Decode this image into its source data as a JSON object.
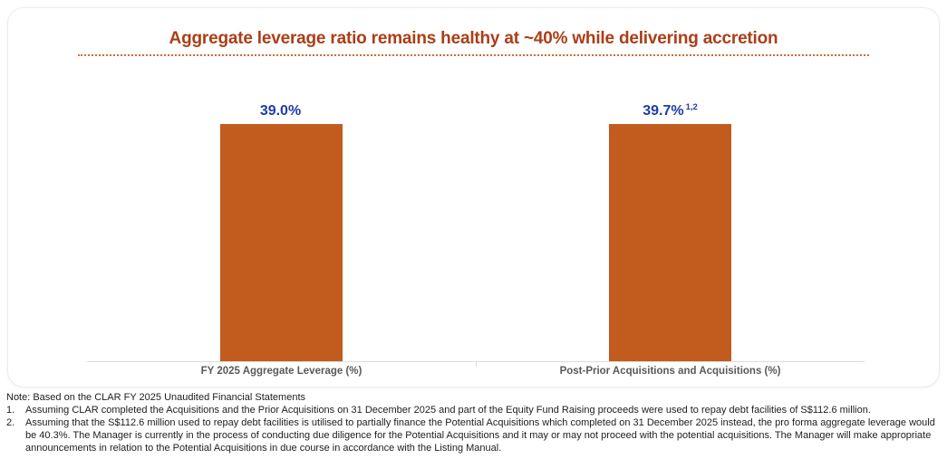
{
  "title": "Aggregate leverage ratio remains healthy at ~40% while delivering accretion",
  "chart_data": {
    "type": "bar",
    "title": "Aggregate leverage ratio remains healthy at ~40% while delivering accretion",
    "categories": [
      "FY 2025 Aggregate Leverage (%)",
      "Post-Prior Acquisitions and Acquisitions (%)"
    ],
    "values": [
      39.0,
      39.7
    ],
    "value_labels": [
      "39.0%",
      "39.7%"
    ],
    "value_label_superscripts": [
      "",
      "1,2"
    ],
    "xlabel": "",
    "ylabel": "",
    "ylim": [
      0,
      40
    ],
    "grid": false,
    "legend": false,
    "bar_color": "#c25b1e",
    "value_label_color": "#1e3ca8",
    "title_color": "#ab3e17",
    "axis_label_color": "#58595b"
  },
  "notes": {
    "note_line": "Note: Based on the CLAR FY 2025 Unaudited Financial Statements",
    "items": [
      {
        "num": "1.",
        "text": "Assuming CLAR completed the Acquisitions and the Prior Acquisitions on 31 December 2025 and part of the Equity Fund Raising proceeds were used to repay debt facilities of S$112.6 million."
      },
      {
        "num": "2.",
        "text": "Assuming that the S$112.6 million used to repay debt facilities is utilised to partially finance the Potential Acquisitions which completed on 31 December 2025 instead, the pro forma aggregate leverage would be 40.3%. The Manager is currently in the process of conducting due diligence for the Potential Acquisitions and it may or may not proceed with the potential acquisitions. The Manager will make appropriate announcements in relation to the Potential Acquisitions in due course in accordance with the Listing Manual."
      }
    ]
  }
}
